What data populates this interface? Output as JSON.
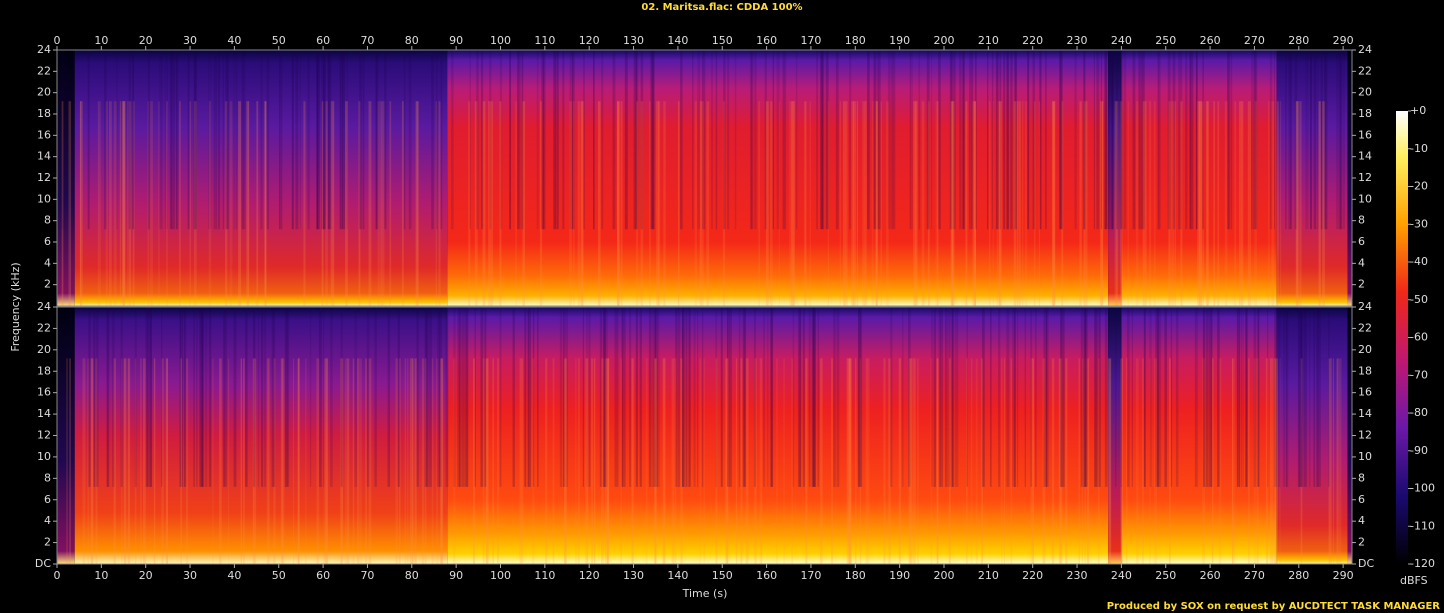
{
  "chart_data": {
    "type": "spectrogram",
    "title": "02. Maritsa.flac: CDDA 100%",
    "x_label": "Time (s)",
    "y_label": "Frequency (kHz)",
    "xlim": [
      0,
      292
    ],
    "xticks": [
      0,
      10,
      20,
      30,
      40,
      50,
      60,
      70,
      80,
      90,
      100,
      110,
      120,
      130,
      140,
      150,
      160,
      170,
      180,
      190,
      200,
      210,
      220,
      230,
      240,
      250,
      260,
      270,
      280,
      290
    ],
    "panels": [
      {
        "ylim": [
          0,
          24
        ],
        "yticks": [
          2,
          4,
          6,
          8,
          10,
          12,
          14,
          16,
          18,
          20,
          22,
          24
        ]
      },
      {
        "ylim": [
          0,
          24
        ],
        "yticks": [
          {
            "value": 0,
            "label": "DC"
          },
          2,
          4,
          6,
          8,
          10,
          12,
          14,
          16,
          18,
          20,
          22,
          24
        ]
      }
    ],
    "colorbar": {
      "label": "dBFS",
      "zlim": [
        -120,
        0
      ],
      "zticks": [
        {
          "value": 0,
          "label": "+0"
        },
        -10,
        -20,
        -30,
        -40,
        -50,
        -60,
        -70,
        -80,
        -90,
        -100,
        -110,
        -120
      ]
    },
    "footer": "Produced by SOX on request by AUCDTECT TASK MANAGER"
  }
}
